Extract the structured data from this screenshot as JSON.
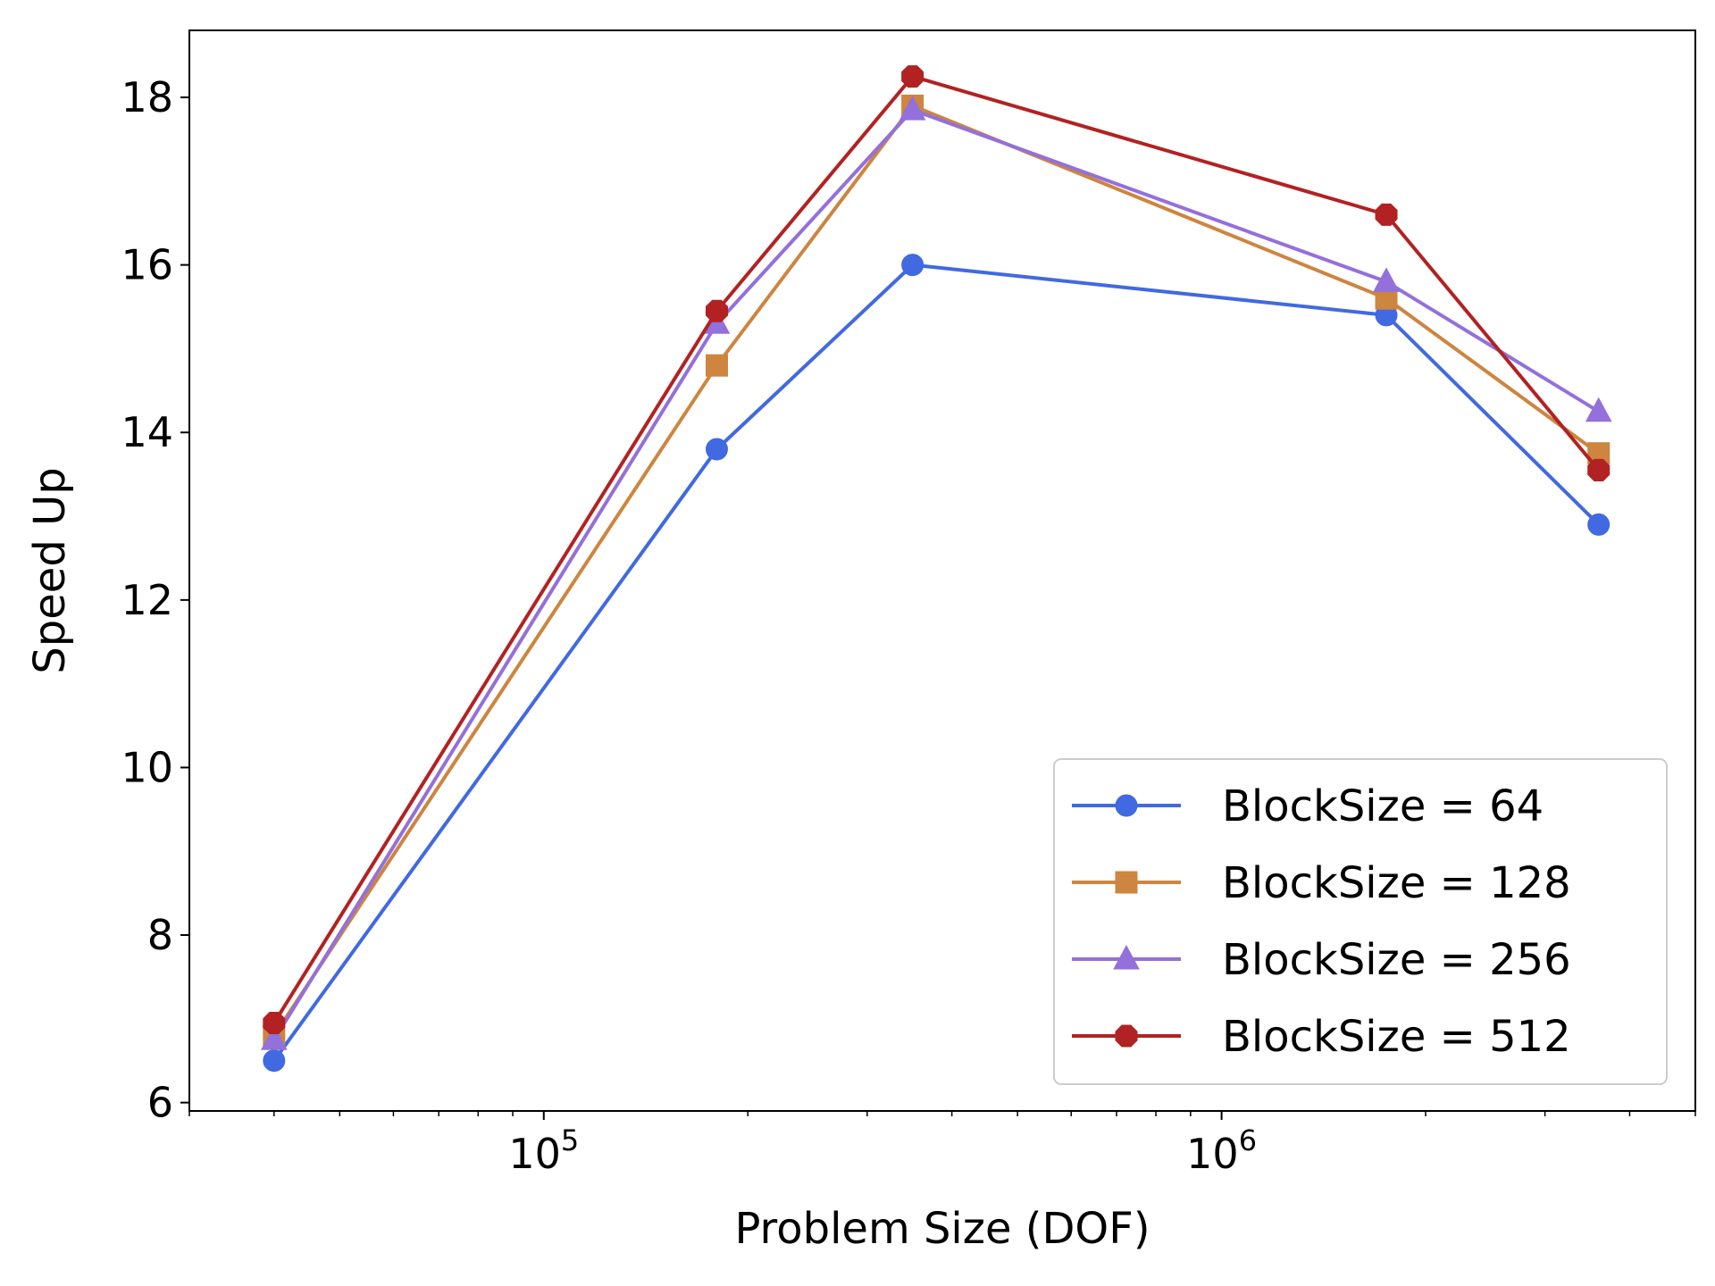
{
  "chart_data": {
    "type": "line",
    "title": "",
    "xlabel": "Problem Size (DOF)",
    "ylabel": "Speed Up",
    "xscale": "log",
    "xlim": [
      30000,
      5000000
    ],
    "ylim": [
      5.9,
      18.8
    ],
    "x": [
      40000,
      180000,
      350000,
      1750000,
      3600000
    ],
    "x_ticks": [
      {
        "value": 100000,
        "base": "10",
        "exp": "5"
      },
      {
        "value": 1000000,
        "base": "10",
        "exp": "6"
      }
    ],
    "y_ticks": [
      6,
      8,
      10,
      12,
      14,
      16,
      18
    ],
    "y_tick_labels": [
      "6",
      "8",
      "10",
      "12",
      "14",
      "16",
      "18"
    ],
    "grid": false,
    "legend_position": "lower-right",
    "series": [
      {
        "name": "BlockSize = 64",
        "color": "#4169e1",
        "marker": "circle",
        "values": [
          6.5,
          13.8,
          16.0,
          15.4,
          12.9
        ]
      },
      {
        "name": "BlockSize = 128",
        "color": "#cd853f",
        "marker": "square",
        "values": [
          6.8,
          14.8,
          17.9,
          15.6,
          13.75
        ]
      },
      {
        "name": "BlockSize = 256",
        "color": "#9370db",
        "marker": "triangle",
        "values": [
          6.75,
          15.3,
          17.85,
          15.8,
          14.25
        ]
      },
      {
        "name": "BlockSize = 512",
        "color": "#b22222",
        "marker": "octagon",
        "values": [
          6.95,
          15.45,
          18.25,
          16.6,
          13.55
        ]
      }
    ]
  }
}
